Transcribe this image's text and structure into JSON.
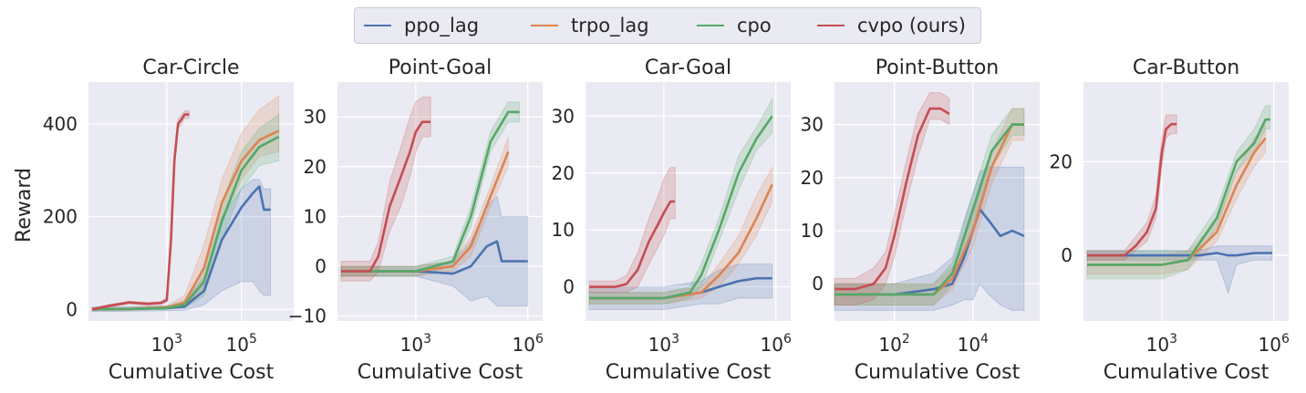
{
  "legend": {
    "entries": [
      {
        "key": "ppo_lag",
        "label": "ppo_lag",
        "color": "#4c72b0"
      },
      {
        "key": "trpo_lag",
        "label": "trpo_lag",
        "color": "#dd8452"
      },
      {
        "key": "cpo",
        "label": "cpo",
        "color": "#55a868"
      },
      {
        "key": "cvpo",
        "label": "cvpo (ours)",
        "color": "#c44e52"
      }
    ]
  },
  "ylabel": "Reward",
  "chart_data": [
    {
      "type": "line",
      "title": "Car-Circle",
      "xlabel": "Cumulative Cost",
      "xscale": "log",
      "xlim": [
        8,
        2500000
      ],
      "ylim": [
        -25,
        490
      ],
      "xticks": [
        {
          "v": 1000,
          "label": "10^3"
        },
        {
          "v": 100000,
          "label": "10^5"
        }
      ],
      "yticks": [
        0,
        200,
        400
      ],
      "series": [
        {
          "name": "ppo_lag",
          "color": "#4c72b0",
          "x": [
            10,
            100,
            1000,
            3000,
            10000,
            30000,
            100000,
            200000,
            300000,
            400000,
            600000
          ],
          "y": [
            0,
            1,
            3,
            6,
            40,
            150,
            220,
            250,
            265,
            215,
            215
          ],
          "lo": [
            -5,
            -4,
            -3,
            -2,
            10,
            40,
            60,
            60,
            40,
            30,
            30
          ],
          "hi": [
            5,
            6,
            8,
            15,
            70,
            200,
            260,
            280,
            280,
            260,
            260
          ]
        },
        {
          "name": "trpo_lag",
          "color": "#dd8452",
          "x": [
            10,
            100,
            1000,
            3000,
            10000,
            30000,
            100000,
            300000,
            1000000
          ],
          "y": [
            0,
            1,
            4,
            15,
            90,
            230,
            320,
            365,
            385
          ],
          "lo": [
            -3,
            -2,
            0,
            5,
            50,
            190,
            280,
            330,
            340
          ],
          "hi": [
            3,
            4,
            8,
            30,
            140,
            280,
            380,
            430,
            460
          ]
        },
        {
          "name": "cpo",
          "color": "#55a868",
          "x": [
            10,
            100,
            1000,
            3000,
            10000,
            30000,
            100000,
            300000,
            1000000
          ],
          "y": [
            0,
            1,
            3,
            10,
            60,
            190,
            300,
            350,
            372
          ],
          "lo": [
            -2,
            -1,
            0,
            3,
            30,
            150,
            260,
            310,
            320
          ],
          "hi": [
            2,
            3,
            6,
            20,
            90,
            230,
            340,
            390,
            420
          ]
        },
        {
          "name": "cvpo (ours)",
          "color": "#c44e52",
          "x": [
            10,
            30,
            100,
            300,
            700,
            1000,
            1300,
            1600,
            2000,
            2500,
            3000,
            4000
          ],
          "y": [
            0,
            8,
            15,
            12,
            14,
            20,
            150,
            320,
            400,
            410,
            420,
            420
          ],
          "lo": [
            -3,
            5,
            12,
            9,
            11,
            15,
            130,
            300,
            390,
            400,
            412,
            412
          ],
          "hi": [
            3,
            11,
            18,
            15,
            17,
            25,
            170,
            340,
            410,
            420,
            428,
            428
          ]
        }
      ]
    },
    {
      "type": "line",
      "title": "Point-Goal",
      "xlabel": "Cumulative Cost",
      "xscale": "log",
      "xlim": [
        8,
        2500000
      ],
      "ylim": [
        -11,
        37
      ],
      "xticks": [
        {
          "v": 1000,
          "label": "10^3"
        },
        {
          "v": 1000000,
          "label": "10^6"
        }
      ],
      "yticks": [
        -10,
        0,
        10,
        20,
        30
      ],
      "series": [
        {
          "name": "ppo_lag",
          "color": "#4c72b0",
          "x": [
            10,
            100,
            1000,
            10000,
            30000,
            80000,
            150000,
            200000,
            300000,
            1000000
          ],
          "y": [
            -1,
            -1,
            -1,
            -1.5,
            0,
            4,
            5,
            1,
            1,
            1
          ],
          "lo": [
            -2,
            -2,
            -2,
            -4,
            -7,
            -6,
            -8,
            -8,
            -8,
            -8
          ],
          "hi": [
            0,
            0,
            0,
            1,
            5,
            12,
            14,
            10,
            10,
            10
          ]
        },
        {
          "name": "trpo_lag",
          "color": "#dd8452",
          "x": [
            10,
            100,
            1000,
            10000,
            30000,
            100000,
            300000
          ],
          "y": [
            -1,
            -1,
            -1,
            0,
            4,
            14,
            23
          ],
          "lo": [
            -2,
            -2,
            -2,
            -1,
            2,
            12,
            20
          ],
          "hi": [
            0,
            0,
            0,
            1,
            6,
            16,
            26
          ]
        },
        {
          "name": "cpo",
          "color": "#55a868",
          "x": [
            10,
            100,
            1000,
            10000,
            30000,
            100000,
            300000,
            600000
          ],
          "y": [
            -1,
            -1,
            -1,
            1,
            10,
            25,
            31,
            31
          ],
          "lo": [
            -2,
            -2,
            -2,
            0,
            8,
            23,
            29,
            29
          ],
          "hi": [
            0,
            0,
            0,
            2,
            12,
            27,
            33,
            33
          ]
        },
        {
          "name": "cvpo (ours)",
          "color": "#c44e52",
          "x": [
            10,
            30,
            60,
            100,
            200,
            400,
            700,
            1000,
            1500,
            2500
          ],
          "y": [
            -1,
            -1,
            -1,
            2,
            12,
            18,
            23,
            27,
            29,
            29
          ],
          "lo": [
            -3,
            -3,
            -3,
            -1,
            7,
            12,
            18,
            23,
            26,
            26
          ],
          "hi": [
            1,
            1,
            1,
            5,
            17,
            24,
            30,
            33,
            34,
            34
          ]
        }
      ]
    },
    {
      "type": "line",
      "title": "Car-Goal",
      "xlabel": "Cumulative Cost",
      "xscale": "log",
      "xlim": [
        8,
        2500000
      ],
      "ylim": [
        -6,
        36
      ],
      "xticks": [
        {
          "v": 1000,
          "label": "10^3"
        },
        {
          "v": 1000000,
          "label": "10^6"
        }
      ],
      "yticks": [
        0,
        10,
        20,
        30
      ],
      "series": [
        {
          "name": "ppo_lag",
          "color": "#4c72b0",
          "x": [
            10,
            100,
            1000,
            10000,
            30000,
            100000,
            300000,
            800000
          ],
          "y": [
            -2,
            -2,
            -2,
            -1,
            0,
            1,
            1.5,
            1.5
          ],
          "lo": [
            -4,
            -4,
            -4,
            -3,
            -3,
            -2,
            -2,
            -2
          ],
          "hi": [
            0,
            0,
            0,
            1,
            3,
            4,
            4,
            4
          ]
        },
        {
          "name": "trpo_lag",
          "color": "#dd8452",
          "x": [
            10,
            100,
            1000,
            10000,
            30000,
            100000,
            300000,
            800000
          ],
          "y": [
            -2,
            -2,
            -2,
            -1,
            2,
            6,
            12,
            18
          ],
          "lo": [
            -3,
            -3,
            -3,
            -2,
            0,
            4,
            9,
            15
          ],
          "hi": [
            -1,
            -1,
            -1,
            0,
            4,
            9,
            16,
            21
          ]
        },
        {
          "name": "cpo",
          "color": "#55a868",
          "x": [
            10,
            100,
            1000,
            5000,
            10000,
            30000,
            100000,
            300000,
            800000
          ],
          "y": [
            -2,
            -2,
            -2,
            -1,
            2,
            10,
            20,
            26,
            30
          ],
          "lo": [
            -3,
            -3,
            -3,
            -2,
            0,
            8,
            17,
            24,
            27
          ],
          "hi": [
            -1,
            -1,
            -1,
            0,
            4,
            12,
            23,
            28,
            33
          ]
        },
        {
          "name": "cvpo (ours)",
          "color": "#c44e52",
          "x": [
            10,
            50,
            100,
            200,
            400,
            700,
            1000,
            1500,
            2000
          ],
          "y": [
            0,
            0,
            0.5,
            3,
            8,
            11,
            13,
            15,
            15
          ],
          "lo": [
            -1,
            -1,
            -1,
            0,
            4,
            7,
            9,
            12,
            12
          ],
          "hi": [
            1,
            1,
            2,
            6,
            12,
            16,
            19,
            21,
            21
          ]
        }
      ]
    },
    {
      "type": "line",
      "title": "Point-Button",
      "xlabel": "Cumulative Cost",
      "xscale": "log",
      "xlim": [
        3,
        500000
      ],
      "ylim": [
        -7,
        38
      ],
      "xticks": [
        {
          "v": 100,
          "label": "10^2"
        },
        {
          "v": 10000,
          "label": "10^4"
        }
      ],
      "yticks": [
        0,
        10,
        20,
        30
      ],
      "series": [
        {
          "name": "ppo_lag",
          "color": "#4c72b0",
          "x": [
            3,
            100,
            1000,
            3000,
            6000,
            10000,
            15000,
            25000,
            50000,
            100000,
            200000
          ],
          "y": [
            -2,
            -2,
            -1,
            0,
            5,
            10,
            14,
            12,
            9,
            10,
            9
          ],
          "lo": [
            -5,
            -5,
            -5,
            -4,
            -3,
            -3,
            0,
            -2,
            -4,
            -5,
            -5
          ],
          "hi": [
            0,
            0,
            2,
            5,
            12,
            17,
            21,
            22,
            22,
            22,
            22
          ]
        },
        {
          "name": "trpo_lag",
          "color": "#dd8452",
          "x": [
            3,
            100,
            1000,
            3000,
            10000,
            30000,
            100000,
            200000
          ],
          "y": [
            -2,
            -2,
            -2,
            1,
            10,
            22,
            30,
            30
          ],
          "lo": [
            -4,
            -4,
            -4,
            -1,
            7,
            19,
            27,
            27
          ],
          "hi": [
            0,
            0,
            0,
            3,
            13,
            25,
            33,
            33
          ]
        },
        {
          "name": "cpo",
          "color": "#55a868",
          "x": [
            3,
            100,
            1000,
            3000,
            10000,
            30000,
            100000,
            200000
          ],
          "y": [
            -2,
            -2,
            -2,
            2,
            14,
            25,
            30,
            30
          ],
          "lo": [
            -4,
            -4,
            -4,
            0,
            11,
            22,
            28,
            28
          ],
          "hi": [
            0,
            0,
            0,
            4,
            17,
            28,
            33,
            33
          ]
        },
        {
          "name": "cvpo (ours)",
          "color": "#c44e52",
          "x": [
            3,
            10,
            30,
            60,
            100,
            200,
            400,
            800,
            1500,
            2500
          ],
          "y": [
            -1,
            -1,
            0,
            3,
            9,
            19,
            28,
            33,
            33,
            32
          ],
          "lo": [
            -4,
            -4,
            -3,
            0,
            5,
            15,
            24,
            31,
            31,
            30
          ],
          "hi": [
            1,
            1,
            3,
            6,
            13,
            23,
            32,
            36,
            36,
            35
          ]
        }
      ]
    },
    {
      "type": "line",
      "title": "Car-Button",
      "xlabel": "Cumulative Cost",
      "xscale": "log",
      "xlim": [
        8,
        2500000
      ],
      "ylim": [
        -14,
        37
      ],
      "xticks": [
        {
          "v": 1000,
          "label": "10^3"
        },
        {
          "v": 1000000,
          "label": "10^6"
        }
      ],
      "yticks": [
        0,
        20
      ],
      "series": [
        {
          "name": "ppo_lag",
          "color": "#4c72b0",
          "x": [
            10,
            1000,
            10000,
            30000,
            60000,
            100000,
            300000,
            900000
          ],
          "y": [
            0,
            0,
            0,
            0.5,
            0,
            0,
            0.5,
            0.5
          ],
          "lo": [
            -1,
            -1,
            -1,
            -1,
            -8,
            -2,
            -1,
            -1
          ],
          "hi": [
            1,
            1,
            1,
            2,
            2,
            2,
            2,
            2
          ]
        },
        {
          "name": "trpo_lag",
          "color": "#dd8452",
          "x": [
            10,
            1000,
            5000,
            30000,
            100000,
            300000,
            600000
          ],
          "y": [
            -2,
            -2,
            -1,
            5,
            15,
            22,
            25
          ],
          "lo": [
            -4,
            -4,
            -3,
            3,
            12,
            19,
            22
          ],
          "hi": [
            0,
            0,
            1,
            7,
            18,
            25,
            28
          ]
        },
        {
          "name": "cpo",
          "color": "#55a868",
          "x": [
            10,
            1000,
            5000,
            30000,
            100000,
            300000,
            600000,
            800000
          ],
          "y": [
            -2,
            -2,
            -1,
            8,
            20,
            24,
            29,
            29
          ],
          "lo": [
            -5,
            -5,
            -3,
            6,
            18,
            22,
            27,
            27
          ],
          "hi": [
            1,
            1,
            1,
            10,
            22,
            27,
            32,
            32
          ]
        },
        {
          "name": "cvpo (ours)",
          "color": "#c44e52",
          "x": [
            10,
            100,
            200,
            400,
            700,
            1000,
            1300,
            1800,
            2500
          ],
          "y": [
            0,
            0,
            2,
            5,
            10,
            22,
            27,
            28,
            28
          ],
          "lo": [
            -1,
            -1,
            1,
            3,
            8,
            19,
            25,
            26,
            26
          ],
          "hi": [
            1,
            1,
            4,
            7,
            13,
            25,
            30,
            30,
            30
          ]
        }
      ]
    }
  ]
}
